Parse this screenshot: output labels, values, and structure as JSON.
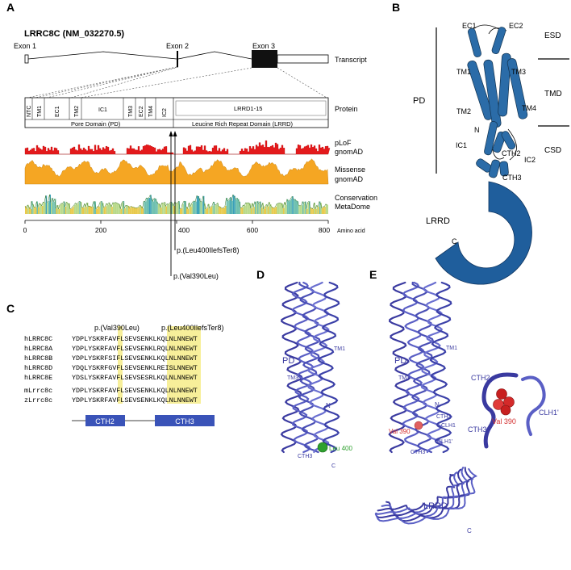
{
  "panels": {
    "a": "A",
    "b": "B",
    "c": "C",
    "d": "D",
    "e": "E"
  },
  "panel_a": {
    "gene_title": "LRRC8C (NM_032270.5)",
    "exons": [
      "Exon 1",
      "Exon 2",
      "Exon 3"
    ],
    "track_labels": {
      "transcript": "Transcript",
      "protein": "Protein",
      "plof_1": "pLoF",
      "plof_2": "gnomAD",
      "missense_1": "Missense",
      "missense_2": "gnomAD",
      "cons_1": "Conservation",
      "cons_2": "MetaDome"
    },
    "domains": [
      "NTC",
      "TM1",
      "EC1",
      "TM2",
      "IC1",
      "TM3",
      "EC2",
      "TM4",
      "IC2",
      "LRRD1-15"
    ],
    "domain_groups": [
      "Pore Domain (PD)",
      "Leucine Rich Repeat Domain (LRRD)"
    ],
    "axis": {
      "ticks": [
        "0",
        "200",
        "400",
        "600",
        "800"
      ],
      "unit": "Amino acid"
    },
    "variants": [
      "p.(Leu400IlefsTer8)",
      "p.(Val390Leu)"
    ]
  },
  "panel_b": {
    "regions": [
      "PD",
      "ESD",
      "TMD",
      "CSD"
    ],
    "labels": [
      "EC1",
      "EC2",
      "TM1",
      "TM3",
      "TM2",
      "TM4",
      "N",
      "IC1",
      "CTH2",
      "IC2",
      "CTH3",
      "LRRD",
      "C"
    ],
    "color": "#2166ac"
  },
  "panel_c": {
    "variants": [
      "p.(Val390Leu)",
      "p.(Leu400IlefsTer8)"
    ],
    "alignment": [
      {
        "name": "hLRRC8C",
        "seq": "YDPLYSKRFAVFLSEVSENKLKQLNLNNEWT"
      },
      {
        "name": "hLRRC8A",
        "seq": "YDPLYSKRFAVFLSEVSENKLRQLNLNNEWT"
      },
      {
        "name": "hLRRC8B",
        "seq": "YDPLYSKRFSIFLSEVSENKLKQLNLNNEWT"
      },
      {
        "name": "hLRRC8D",
        "seq": "YDQLYSKRFGVFLSEVSENKLREISLNNEWT"
      },
      {
        "name": "hLRRC8E",
        "seq": "YDSLYSKRFAVFLSEVSESRLKQLNLNNEWT"
      },
      {
        "name": "mLrrc8c",
        "seq": "YDPLYSKRFAVFLSEVSENKLKQLNLNNEWT"
      },
      {
        "name": "zLrrc8c",
        "seq": "YDPLYSKRFAVFLSEVSENKLKQLNLNNEWT"
      }
    ],
    "bars": [
      "CTH2",
      "CTH3"
    ],
    "highlight_color": "#f7ef9a",
    "bar_color": "#3a53b8"
  },
  "panel_d": {
    "labels": [
      "PD",
      "TM1",
      "TM3",
      "N",
      "CTH3",
      "C",
      "Leu 400"
    ],
    "mark_color": "#2ea02e"
  },
  "panel_e": {
    "labels": [
      "PD",
      "TM1",
      "TM3",
      "N",
      "CTH2",
      "CLH1",
      "CLH1'",
      "Val 390",
      "CTH3",
      "LRRD",
      "C"
    ],
    "inset": [
      "CTH2",
      "Val 390",
      "CLH1'",
      "CTH3"
    ],
    "mark_color": "#d43030"
  },
  "colors": {
    "plof": "#e31a1c",
    "missense": "#f5a623",
    "ribbon": "#4a4fb5"
  }
}
